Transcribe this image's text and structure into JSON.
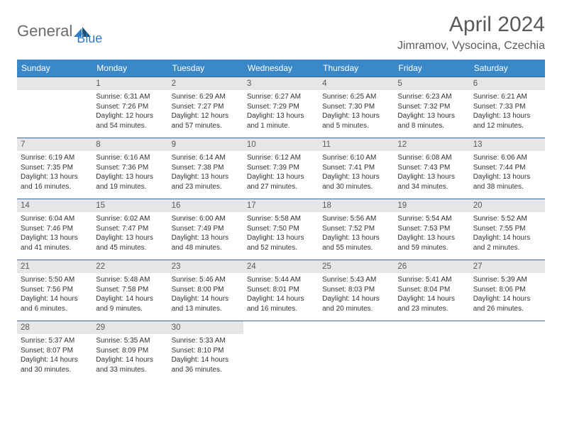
{
  "logo": {
    "text1": "General",
    "text2": "Blue"
  },
  "title": "April 2024",
  "location": "Jimramov, Vysocina, Czechia",
  "colors": {
    "header_bg": "#3a88c8",
    "header_text": "#ffffff",
    "daynum_bg": "#e6e6e6",
    "border": "#3a6a9a",
    "text": "#333333",
    "title_color": "#5a5a5a",
    "logo_gray": "#6b6b6b",
    "logo_blue": "#2f7ec2"
  },
  "weekdays": [
    "Sunday",
    "Monday",
    "Tuesday",
    "Wednesday",
    "Thursday",
    "Friday",
    "Saturday"
  ],
  "start_offset": 1,
  "days": [
    {
      "n": 1,
      "sunrise": "6:31 AM",
      "sunset": "7:26 PM",
      "daylight": "12 hours and 54 minutes."
    },
    {
      "n": 2,
      "sunrise": "6:29 AM",
      "sunset": "7:27 PM",
      "daylight": "12 hours and 57 minutes."
    },
    {
      "n": 3,
      "sunrise": "6:27 AM",
      "sunset": "7:29 PM",
      "daylight": "13 hours and 1 minute."
    },
    {
      "n": 4,
      "sunrise": "6:25 AM",
      "sunset": "7:30 PM",
      "daylight": "13 hours and 5 minutes."
    },
    {
      "n": 5,
      "sunrise": "6:23 AM",
      "sunset": "7:32 PM",
      "daylight": "13 hours and 8 minutes."
    },
    {
      "n": 6,
      "sunrise": "6:21 AM",
      "sunset": "7:33 PM",
      "daylight": "13 hours and 12 minutes."
    },
    {
      "n": 7,
      "sunrise": "6:19 AM",
      "sunset": "7:35 PM",
      "daylight": "13 hours and 16 minutes."
    },
    {
      "n": 8,
      "sunrise": "6:16 AM",
      "sunset": "7:36 PM",
      "daylight": "13 hours and 19 minutes."
    },
    {
      "n": 9,
      "sunrise": "6:14 AM",
      "sunset": "7:38 PM",
      "daylight": "13 hours and 23 minutes."
    },
    {
      "n": 10,
      "sunrise": "6:12 AM",
      "sunset": "7:39 PM",
      "daylight": "13 hours and 27 minutes."
    },
    {
      "n": 11,
      "sunrise": "6:10 AM",
      "sunset": "7:41 PM",
      "daylight": "13 hours and 30 minutes."
    },
    {
      "n": 12,
      "sunrise": "6:08 AM",
      "sunset": "7:43 PM",
      "daylight": "13 hours and 34 minutes."
    },
    {
      "n": 13,
      "sunrise": "6:06 AM",
      "sunset": "7:44 PM",
      "daylight": "13 hours and 38 minutes."
    },
    {
      "n": 14,
      "sunrise": "6:04 AM",
      "sunset": "7:46 PM",
      "daylight": "13 hours and 41 minutes."
    },
    {
      "n": 15,
      "sunrise": "6:02 AM",
      "sunset": "7:47 PM",
      "daylight": "13 hours and 45 minutes."
    },
    {
      "n": 16,
      "sunrise": "6:00 AM",
      "sunset": "7:49 PM",
      "daylight": "13 hours and 48 minutes."
    },
    {
      "n": 17,
      "sunrise": "5:58 AM",
      "sunset": "7:50 PM",
      "daylight": "13 hours and 52 minutes."
    },
    {
      "n": 18,
      "sunrise": "5:56 AM",
      "sunset": "7:52 PM",
      "daylight": "13 hours and 55 minutes."
    },
    {
      "n": 19,
      "sunrise": "5:54 AM",
      "sunset": "7:53 PM",
      "daylight": "13 hours and 59 minutes."
    },
    {
      "n": 20,
      "sunrise": "5:52 AM",
      "sunset": "7:55 PM",
      "daylight": "14 hours and 2 minutes."
    },
    {
      "n": 21,
      "sunrise": "5:50 AM",
      "sunset": "7:56 PM",
      "daylight": "14 hours and 6 minutes."
    },
    {
      "n": 22,
      "sunrise": "5:48 AM",
      "sunset": "7:58 PM",
      "daylight": "14 hours and 9 minutes."
    },
    {
      "n": 23,
      "sunrise": "5:46 AM",
      "sunset": "8:00 PM",
      "daylight": "14 hours and 13 minutes."
    },
    {
      "n": 24,
      "sunrise": "5:44 AM",
      "sunset": "8:01 PM",
      "daylight": "14 hours and 16 minutes."
    },
    {
      "n": 25,
      "sunrise": "5:43 AM",
      "sunset": "8:03 PM",
      "daylight": "14 hours and 20 minutes."
    },
    {
      "n": 26,
      "sunrise": "5:41 AM",
      "sunset": "8:04 PM",
      "daylight": "14 hours and 23 minutes."
    },
    {
      "n": 27,
      "sunrise": "5:39 AM",
      "sunset": "8:06 PM",
      "daylight": "14 hours and 26 minutes."
    },
    {
      "n": 28,
      "sunrise": "5:37 AM",
      "sunset": "8:07 PM",
      "daylight": "14 hours and 30 minutes."
    },
    {
      "n": 29,
      "sunrise": "5:35 AM",
      "sunset": "8:09 PM",
      "daylight": "14 hours and 33 minutes."
    },
    {
      "n": 30,
      "sunrise": "5:33 AM",
      "sunset": "8:10 PM",
      "daylight": "14 hours and 36 minutes."
    }
  ]
}
